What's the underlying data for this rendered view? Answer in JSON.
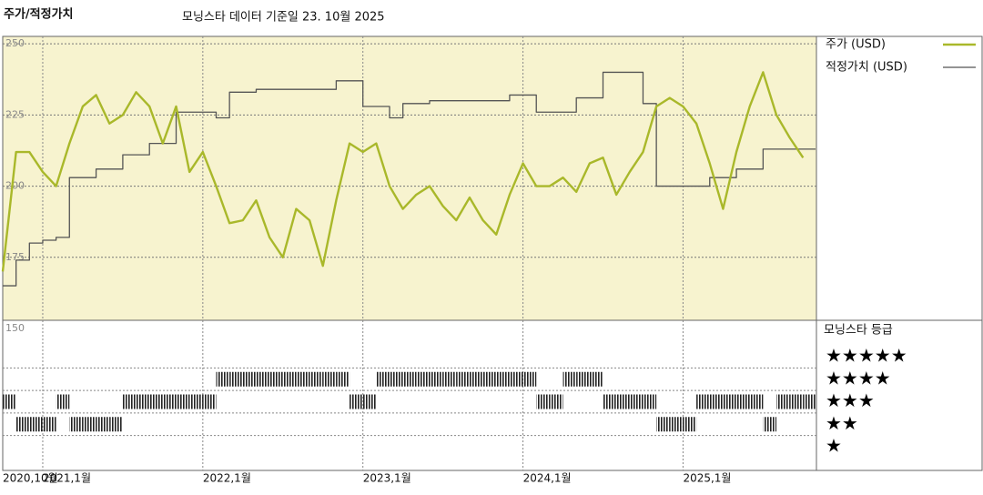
{
  "chart_data": {
    "type": "line",
    "title": "주가/적정가치",
    "subtitle": "모닝스타 데이터 기준일 23. 10월 2025",
    "x": [
      "2020-10",
      "2020-11",
      "2020-12",
      "2021-01",
      "2021-02",
      "2021-03",
      "2021-04",
      "2021-05",
      "2021-06",
      "2021-07",
      "2021-08",
      "2021-09",
      "2021-10",
      "2021-11",
      "2021-12",
      "2022-01",
      "2022-02",
      "2022-03",
      "2022-04",
      "2022-05",
      "2022-06",
      "2022-07",
      "2022-08",
      "2022-09",
      "2022-10",
      "2022-11",
      "2022-12",
      "2023-01",
      "2023-02",
      "2023-03",
      "2023-04",
      "2023-05",
      "2023-06",
      "2023-07",
      "2023-08",
      "2023-09",
      "2023-10",
      "2023-11",
      "2023-12",
      "2024-01",
      "2024-02",
      "2024-03",
      "2024-04",
      "2024-05",
      "2024-06",
      "2024-07",
      "2024-08",
      "2024-09",
      "2024-10",
      "2024-11",
      "2024-12",
      "2025-01",
      "2025-02",
      "2025-03",
      "2025-04",
      "2025-05",
      "2025-06",
      "2025-07",
      "2025-08",
      "2025-09",
      "2025-10"
    ],
    "xlim": [
      "2020-10",
      "2025-11"
    ],
    "xticks": [
      {
        "value": "2020-10",
        "label": "2020,10월"
      },
      {
        "value": "2021-01",
        "label": "2021,1월"
      },
      {
        "value": "2022-01",
        "label": "2022,1월"
      },
      {
        "value": "2023-01",
        "label": "2023,1월"
      },
      {
        "value": "2024-01",
        "label": "2024,1월"
      },
      {
        "value": "2025-01",
        "label": "2025,1월"
      }
    ],
    "ylim": [
      150,
      252.6
    ],
    "yticks": [
      150,
      175,
      200,
      225,
      250
    ],
    "grid": true,
    "series": [
      {
        "name": "주가 (USD)",
        "color": "#a9b82a",
        "values": [
          170,
          212,
          212,
          205,
          200,
          215,
          228,
          232,
          222,
          225,
          233,
          228,
          215,
          228,
          205,
          212,
          200,
          187,
          188,
          195,
          182,
          175,
          192,
          188,
          172,
          195,
          215,
          212,
          215,
          200,
          192,
          197,
          200,
          193,
          188,
          196,
          188,
          183,
          197,
          208,
          200,
          200,
          203,
          198,
          208,
          210,
          197,
          205,
          212,
          228,
          231,
          228,
          222,
          208,
          192,
          212,
          228,
          240,
          225,
          217,
          210
        ]
      },
      {
        "name": "적정가치 (USD)",
        "color": "#555555",
        "step": "after",
        "values": [
          165,
          174,
          180,
          181,
          182,
          203,
          203,
          206,
          206,
          211,
          211,
          215,
          215,
          226,
          226,
          226,
          224,
          233,
          233,
          234,
          234,
          234,
          234,
          234,
          234,
          237,
          237,
          228,
          228,
          224,
          229,
          229,
          230,
          230,
          230,
          230,
          230,
          230,
          232,
          232,
          226,
          226,
          226,
          231,
          231,
          240,
          240,
          240,
          229,
          200,
          200,
          200,
          200,
          203,
          203,
          206,
          206,
          213,
          213,
          213,
          213
        ]
      }
    ],
    "ratings": {
      "title": "모닝스타 등급",
      "levels": [
        5,
        4,
        3,
        2,
        1
      ],
      "labels": [
        "★★★★★",
        "★★★★",
        "★★★",
        "★★",
        "★"
      ],
      "color": "#222222",
      "values": [
        3,
        2,
        2,
        2,
        3,
        2,
        2,
        2,
        2,
        3,
        3,
        3,
        3,
        3,
        3,
        3,
        4,
        4,
        4,
        4,
        4,
        4,
        4,
        4,
        4,
        4,
        3,
        3,
        4,
        4,
        4,
        4,
        4,
        4,
        4,
        4,
        4,
        4,
        4,
        4,
        3,
        3,
        4,
        4,
        4,
        3,
        3,
        3,
        3,
        2,
        2,
        2,
        3,
        3,
        3,
        3,
        3,
        2,
        3,
        3,
        3
      ]
    }
  }
}
